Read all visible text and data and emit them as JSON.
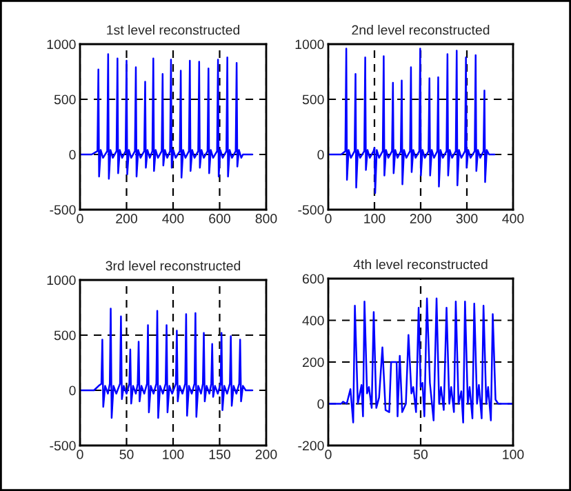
{
  "chart_data": [
    {
      "type": "line",
      "title": "1st level reconstructed",
      "xlim": [
        0,
        800
      ],
      "xticks": [
        0,
        200,
        400,
        600,
        800
      ],
      "ylim": [
        -500,
        1000
      ],
      "yticks": [
        -500,
        0,
        500,
        1000
      ],
      "grid": true,
      "series": [
        {
          "color": "#0000ff",
          "x": [
            0,
            50,
            75,
            79,
            82,
            89,
            99,
            117,
            121,
            124,
            131,
            141,
            157,
            161,
            164,
            171,
            181,
            196,
            200,
            203,
            210,
            220,
            236,
            240,
            243,
            250,
            260,
            276,
            280,
            283,
            290,
            300,
            311,
            315,
            318,
            325,
            335,
            351,
            355,
            358,
            365,
            375,
            387,
            391,
            394,
            401,
            411,
            429,
            433,
            436,
            443,
            453,
            468,
            472,
            475,
            482,
            492,
            508,
            512,
            515,
            522,
            532,
            548,
            552,
            555,
            562,
            572,
            589,
            593,
            596,
            603,
            613,
            629,
            633,
            636,
            643,
            653,
            669,
            673,
            676,
            683,
            693,
            700,
            740
          ],
          "values": [
            0,
            0,
            30,
            770,
            -200,
            40,
            -30,
            30,
            910,
            -220,
            40,
            -30,
            30,
            870,
            -170,
            40,
            -30,
            30,
            850,
            -180,
            40,
            -30,
            30,
            790,
            -200,
            40,
            -30,
            30,
            660,
            -120,
            40,
            -30,
            30,
            870,
            -150,
            40,
            -30,
            30,
            730,
            -100,
            40,
            -30,
            30,
            860,
            -120,
            40,
            -30,
            30,
            760,
            -210,
            40,
            -30,
            30,
            850,
            -150,
            40,
            -30,
            30,
            840,
            -120,
            40,
            -30,
            30,
            780,
            -170,
            40,
            -30,
            30,
            860,
            -200,
            40,
            -30,
            30,
            880,
            -200,
            40,
            -30,
            30,
            830,
            -110,
            40,
            -30,
            0,
            0
          ]
        }
      ]
    },
    {
      "type": "line",
      "title": "2nd level reconstructed",
      "xlim": [
        0,
        400
      ],
      "xticks": [
        0,
        100,
        200,
        300,
        400
      ],
      "ylim": [
        -500,
        1000
      ],
      "yticks": [
        -500,
        0,
        500,
        1000
      ],
      "grid": true,
      "series": [
        {
          "color": "#0000ff",
          "x": [
            0,
            28,
            37,
            39,
            40.5,
            44,
            49,
            57,
            59,
            60.5,
            64,
            69,
            78,
            80,
            81.5,
            85,
            90,
            98,
            100,
            101.5,
            105,
            110,
            118,
            120,
            121.5,
            125,
            130,
            138,
            140,
            141.5,
            145,
            150,
            157,
            159,
            160.5,
            164,
            169,
            177,
            179,
            180.5,
            184,
            189,
            197,
            199,
            200.5,
            204,
            209,
            217,
            219,
            220.5,
            224,
            229,
            236,
            238,
            239.5,
            243,
            248,
            256,
            258,
            259.5,
            263,
            268,
            276,
            278,
            279.5,
            283,
            288,
            296,
            298,
            299.5,
            303,
            308,
            317,
            319,
            320.5,
            324,
            329,
            336,
            338,
            339.5,
            343,
            348,
            360
          ],
          "values": [
            0,
            0,
            30,
            960,
            -230,
            40,
            -30,
            30,
            730,
            -300,
            40,
            -30,
            30,
            880,
            -140,
            40,
            -30,
            30,
            60,
            -350,
            40,
            -30,
            30,
            890,
            -190,
            40,
            -30,
            30,
            650,
            -170,
            40,
            -30,
            30,
            670,
            -270,
            40,
            -30,
            30,
            790,
            -160,
            40,
            -30,
            30,
            960,
            -190,
            40,
            -30,
            30,
            690,
            -190,
            40,
            -30,
            30,
            700,
            -290,
            40,
            -30,
            30,
            910,
            -190,
            40,
            -30,
            30,
            940,
            -280,
            40,
            -30,
            30,
            880,
            -120,
            40,
            -30,
            30,
            900,
            -150,
            40,
            -30,
            30,
            580,
            -250,
            40,
            0,
            0
          ]
        }
      ]
    },
    {
      "type": "line",
      "title": "3rd level reconstructed",
      "xlim": [
        0,
        200
      ],
      "xticks": [
        0,
        50,
        100,
        150,
        200
      ],
      "ylim": [
        -500,
        1000
      ],
      "yticks": [
        -500,
        0,
        500,
        1000
      ],
      "grid": true,
      "series": [
        {
          "color": "#0000ff",
          "x": [
            0,
            15,
            20,
            23,
            24,
            25,
            27,
            30,
            32,
            33,
            34,
            36,
            39,
            43,
            44,
            45,
            47,
            50,
            53,
            54,
            55,
            57,
            60,
            62,
            63,
            64,
            66,
            69,
            72,
            73,
            74,
            76,
            79,
            82,
            83,
            84,
            86,
            89,
            92,
            93,
            94,
            96,
            99,
            103,
            104,
            105,
            107,
            110,
            113,
            114,
            115,
            117,
            120,
            123,
            124,
            125,
            127,
            130,
            132,
            133,
            134,
            136,
            139,
            141,
            142,
            143,
            145,
            148,
            151,
            152,
            153,
            155,
            158,
            161,
            162,
            163,
            165,
            168,
            171,
            172,
            173,
            175,
            178,
            185
          ],
          "values": [
            0,
            0,
            40,
            60,
            460,
            -150,
            40,
            -30,
            60,
            740,
            -250,
            40,
            -30,
            60,
            670,
            -80,
            40,
            -30,
            60,
            370,
            -120,
            40,
            -30,
            60,
            440,
            -100,
            40,
            -30,
            60,
            590,
            -200,
            40,
            -30,
            60,
            720,
            -250,
            40,
            -30,
            60,
            590,
            -200,
            40,
            -30,
            60,
            540,
            -100,
            40,
            -30,
            60,
            690,
            -230,
            40,
            -30,
            60,
            700,
            -240,
            40,
            -30,
            60,
            520,
            -100,
            40,
            -30,
            60,
            420,
            -60,
            40,
            -30,
            60,
            520,
            -180,
            40,
            -30,
            60,
            490,
            -140,
            40,
            -30,
            60,
            460,
            -100,
            40,
            0,
            0
          ]
        }
      ]
    },
    {
      "type": "line",
      "title": "4th level reconstructed",
      "xlim": [
        0,
        100
      ],
      "xticks": [
        0,
        50,
        100
      ],
      "ylim": [
        -200,
        600
      ],
      "yticks": [
        -200,
        0,
        200,
        400,
        600
      ],
      "grid": true,
      "series": [
        {
          "color": "#0000ff",
          "x": [
            0,
            7,
            8,
            10,
            12,
            13.5,
            14.4,
            16,
            18,
            18.8,
            19.6,
            21,
            22,
            23.5,
            24.6,
            26,
            27.5,
            29.3,
            31,
            33,
            34,
            37,
            37.5,
            38.7,
            40,
            42,
            43.4,
            45,
            46,
            47.5,
            48.9,
            50,
            51,
            52,
            53.4,
            55,
            57,
            58.6,
            60,
            61,
            62.5,
            64,
            65.5,
            66.5,
            68,
            69,
            70.5,
            72,
            73,
            74,
            75.5,
            76.5,
            78,
            79,
            80.5,
            81.5,
            83,
            84,
            85.5,
            86.5,
            88,
            89,
            90.5,
            92,
            100
          ],
          "values": [
            0,
            0,
            10,
            0,
            70,
            -90,
            470,
            0,
            90,
            -60,
            490,
            50,
            80,
            -20,
            440,
            -20,
            30,
            270,
            -30,
            -40,
            200,
            200,
            -60,
            230,
            -40,
            0,
            330,
            50,
            80,
            -40,
            460,
            80,
            100,
            -60,
            505,
            100,
            -80,
            505,
            0,
            80,
            -30,
            460,
            0,
            80,
            -40,
            490,
            0,
            60,
            -90,
            490,
            0,
            80,
            -70,
            480,
            0,
            90,
            -70,
            470,
            0,
            80,
            -80,
            430,
            20,
            0,
            0
          ]
        }
      ]
    }
  ]
}
